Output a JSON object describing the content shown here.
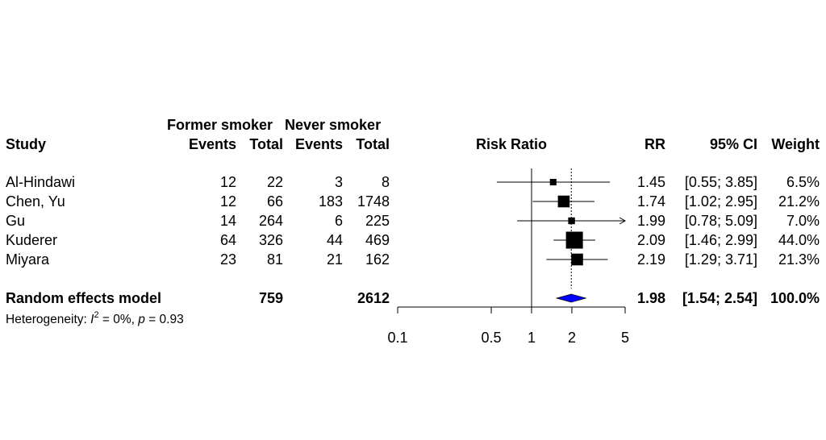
{
  "header": {
    "study": "Study",
    "group1": "Former smoker",
    "group2": "Never smoker",
    "events": "Events",
    "total": "Total",
    "risk_ratio": "Risk Ratio",
    "rr": "RR",
    "ci": "95% CI",
    "weight": "Weight"
  },
  "chart_data": {
    "type": "forest",
    "xscale": "log",
    "xlim": [
      0.1,
      5
    ],
    "ticks": [
      0.1,
      0.5,
      1,
      2,
      5
    ],
    "tick_labels": [
      "0.1",
      "0.5",
      "1",
      "2",
      "5"
    ],
    "reference_line": 1,
    "pooled_line": 1.98,
    "studies": [
      {
        "study": "Al-Hindawi",
        "e1": "12",
        "n1": "22",
        "e2": "3",
        "n2": "8",
        "rr": 1.45,
        "lo": 0.55,
        "hi": 3.85,
        "weight": 6.5,
        "rr_text": "1.45",
        "ci_text": "[0.55; 3.85]",
        "weight_text": "6.5%"
      },
      {
        "study": "Chen, Yu",
        "e1": "12",
        "n1": "66",
        "e2": "183",
        "n2": "1748",
        "rr": 1.74,
        "lo": 1.02,
        "hi": 2.95,
        "weight": 21.2,
        "rr_text": "1.74",
        "ci_text": "[1.02; 2.95]",
        "weight_text": "21.2%"
      },
      {
        "study": "Gu",
        "e1": "14",
        "n1": "264",
        "e2": "6",
        "n2": "225",
        "rr": 1.99,
        "lo": 0.78,
        "hi": 5.09,
        "weight": 7.0,
        "rr_text": "1.99",
        "ci_text": "[0.78; 5.09]",
        "weight_text": "7.0%"
      },
      {
        "study": "Kuderer",
        "e1": "64",
        "n1": "326",
        "e2": "44",
        "n2": "469",
        "rr": 2.09,
        "lo": 1.46,
        "hi": 2.99,
        "weight": 44.0,
        "rr_text": "2.09",
        "ci_text": "[1.46; 2.99]",
        "weight_text": "44.0%"
      },
      {
        "study": "Miyara",
        "e1": "23",
        "n1": "81",
        "e2": "21",
        "n2": "162",
        "rr": 2.19,
        "lo": 1.29,
        "hi": 3.71,
        "weight": 21.3,
        "rr_text": "2.19",
        "ci_text": "[1.29; 3.71]",
        "weight_text": "21.3%"
      }
    ],
    "pooled": {
      "label": "Random effects model",
      "n1": "759",
      "n2": "2612",
      "rr": 1.98,
      "lo": 1.54,
      "hi": 2.54,
      "rr_text": "1.98",
      "ci_text": "[1.54; 2.54]",
      "weight_text": "100.0%",
      "color": "#0000ff"
    },
    "heterogeneity": {
      "prefix": "Heterogeneity: ",
      "i_symbol": "I",
      "sup": "2",
      "i2_text": " = 0%, ",
      "p_symbol": "p",
      "p_text": " = 0.93"
    }
  }
}
